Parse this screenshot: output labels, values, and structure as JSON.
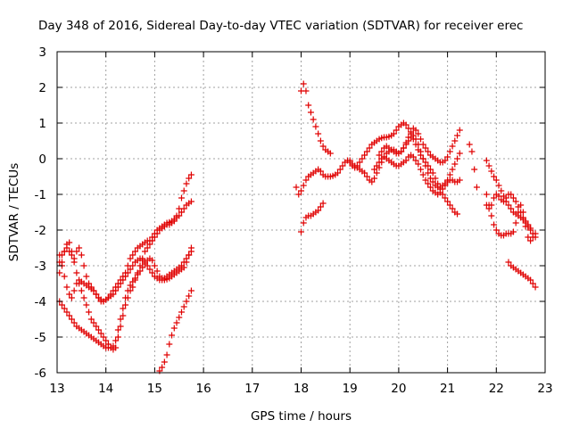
{
  "chart_data": {
    "type": "scatter",
    "title": "Day 348 of 2016, Sidereal Day-to-day VTEC variation (SDTVAR) for receiver erec",
    "xlabel": "GPS time / hours",
    "ylabel": "SDTVAR / TECUs",
    "xlim": [
      13,
      23
    ],
    "ylim": [
      -6,
      3
    ],
    "xticks": [
      "13",
      "14",
      "15",
      "16",
      "17",
      "18",
      "19",
      "20",
      "21",
      "22",
      "23"
    ],
    "yticks": [
      "3",
      "2",
      "1",
      "0",
      "-1",
      "-2",
      "-3",
      "-4",
      "-5",
      "-6"
    ],
    "marker": "+",
    "color": "#e00000",
    "series": [
      {
        "name": "s1",
        "x": [
          13.05,
          13.1,
          13.15,
          13.2,
          13.25,
          13.3,
          13.35,
          13.4,
          13.45,
          13.5,
          13.55,
          13.6,
          13.65,
          13.7,
          13.75,
          13.8,
          13.85,
          13.9,
          13.95,
          14.0,
          14.05,
          14.1,
          14.15,
          14.2,
          14.25,
          14.3,
          14.35,
          14.4,
          14.45,
          14.5,
          14.55,
          14.6,
          14.65,
          14.7,
          14.75,
          14.8,
          14.85,
          14.9,
          14.95,
          15.0,
          15.05,
          15.1,
          15.15,
          15.2,
          15.25,
          15.3,
          15.35,
          15.4,
          15.45,
          15.5,
          15.55,
          15.6,
          15.65,
          15.7,
          15.75
        ],
        "y": [
          -3.2,
          -2.9,
          -2.6,
          -2.4,
          -2.35,
          -2.6,
          -2.9,
          -3.2,
          -3.5,
          -3.7,
          -3.9,
          -4.1,
          -4.3,
          -4.5,
          -4.6,
          -4.7,
          -4.8,
          -4.9,
          -5.0,
          -5.1,
          -5.2,
          -5.3,
          -5.35,
          -5.3,
          -5.0,
          -4.7,
          -4.4,
          -4.1,
          -3.9,
          -3.7,
          -3.6,
          -3.4,
          -3.2,
          -3.0,
          -2.8,
          -2.6,
          -2.5,
          -2.4,
          -2.3,
          -2.2,
          -2.1,
          -2.0,
          -1.95,
          -1.9,
          -1.85,
          -1.85,
          -1.8,
          -1.75,
          -1.6,
          -1.4,
          -1.1,
          -0.9,
          -0.7,
          -0.55,
          -0.45
        ]
      },
      {
        "name": "s2",
        "x": [
          13.05,
          13.1,
          13.15,
          13.2,
          13.25,
          13.3,
          13.35,
          13.4,
          13.45,
          13.5,
          13.55,
          13.6,
          13.65,
          13.7,
          13.75,
          13.8,
          13.85,
          13.9,
          13.95,
          14.0,
          14.05,
          14.1,
          14.15,
          14.2,
          14.25,
          14.3,
          14.35,
          14.4,
          14.45,
          14.5,
          14.55,
          14.6,
          14.65,
          14.7,
          14.75,
          14.8,
          14.85,
          14.9,
          14.95,
          15.0,
          15.05,
          15.1,
          15.15,
          15.2,
          15.25,
          15.3,
          15.35,
          15.4,
          15.45,
          15.5,
          15.55,
          15.6,
          15.65,
          15.7,
          15.75
        ],
        "y": [
          -2.9,
          -2.7,
          -2.6,
          -2.5,
          -2.6,
          -2.7,
          -2.8,
          -2.6,
          -2.5,
          -2.7,
          -3.0,
          -3.3,
          -3.5,
          -3.6,
          -3.7,
          -3.8,
          -3.9,
          -3.95,
          -4.0,
          -3.95,
          -3.9,
          -3.8,
          -3.7,
          -3.6,
          -3.5,
          -3.4,
          -3.3,
          -3.2,
          -3.0,
          -2.8,
          -2.7,
          -2.6,
          -2.5,
          -2.45,
          -2.4,
          -2.35,
          -2.3,
          -2.3,
          -2.2,
          -2.1,
          -2.0,
          -1.95,
          -1.9,
          -1.85,
          -1.8,
          -1.78,
          -1.75,
          -1.7,
          -1.65,
          -1.6,
          -1.5,
          -1.4,
          -1.3,
          -1.25,
          -1.2
        ]
      },
      {
        "name": "s3",
        "x": [
          13.05,
          13.1,
          13.15,
          13.2,
          13.25,
          13.3,
          13.35,
          13.4,
          13.45,
          13.5,
          13.55,
          13.6,
          13.65,
          13.7,
          13.75,
          13.8,
          13.85,
          13.9,
          13.95,
          14.0,
          14.05,
          14.1,
          14.15,
          14.2,
          14.25,
          14.3,
          14.35,
          14.4,
          14.45,
          14.5,
          14.55,
          14.6,
          14.65,
          14.7,
          14.75,
          14.8,
          14.85,
          14.9,
          14.95,
          15.0,
          15.05,
          15.1,
          15.15,
          15.2,
          15.25,
          15.3,
          15.35,
          15.4,
          15.45,
          15.5,
          15.55,
          15.6,
          15.65,
          15.7,
          15.75
        ],
        "y": [
          -4.0,
          -4.1,
          -4.2,
          -4.3,
          -4.4,
          -4.5,
          -4.6,
          -4.7,
          -4.75,
          -4.8,
          -4.85,
          -4.9,
          -4.95,
          -5.0,
          -5.05,
          -5.1,
          -5.15,
          -5.2,
          -5.25,
          -5.3,
          -5.3,
          -5.3,
          -5.25,
          -5.1,
          -4.8,
          -4.5,
          -4.2,
          -3.9,
          -3.7,
          -3.55,
          -3.45,
          -3.35,
          -3.25,
          -3.15,
          -3.05,
          -2.95,
          -2.85,
          -2.8,
          -2.85,
          -3.0,
          -3.15,
          -3.3,
          -3.35,
          -3.4,
          -3.38,
          -3.35,
          -3.3,
          -3.25,
          -3.2,
          -3.15,
          -3.1,
          -3.05,
          -2.9,
          -2.7,
          -2.5
        ]
      },
      {
        "name": "s4",
        "x": [
          13.05,
          13.1,
          13.15,
          13.2,
          13.25,
          13.3,
          13.35,
          13.4,
          13.45,
          13.5,
          13.55,
          13.6,
          13.65,
          13.7,
          13.75,
          13.8,
          13.85,
          13.9,
          13.95,
          14.0,
          14.05,
          14.1,
          14.15,
          14.2,
          14.25,
          14.3,
          14.35,
          14.4,
          14.45,
          14.5,
          14.55,
          14.6,
          14.65,
          14.7,
          14.75,
          14.8,
          14.85,
          14.9,
          14.95,
          15.0,
          15.05,
          15.1,
          15.15,
          15.2,
          15.25,
          15.3,
          15.35,
          15.4,
          15.45,
          15.5,
          15.55,
          15.6,
          15.65,
          15.7,
          15.75
        ],
        "y": [
          -2.7,
          -3.0,
          -3.3,
          -3.6,
          -3.8,
          -3.9,
          -3.7,
          -3.5,
          -3.4,
          -3.45,
          -3.5,
          -3.55,
          -3.6,
          -3.65,
          -3.7,
          -3.8,
          -3.9,
          -4.0,
          -4.0,
          -3.95,
          -3.9,
          -3.85,
          -3.8,
          -3.7,
          -3.6,
          -3.5,
          -3.4,
          -3.3,
          -3.2,
          -3.1,
          -3.0,
          -2.9,
          -2.85,
          -2.8,
          -2.85,
          -2.9,
          -3.0,
          -3.1,
          -3.2,
          -3.3,
          -3.35,
          -3.4,
          -3.4,
          -3.35,
          -3.3,
          -3.25,
          -3.2,
          -3.15,
          -3.1,
          -3.05,
          -3.0,
          -2.9,
          -2.8,
          -2.7,
          -2.6
        ]
      },
      {
        "name": "s5",
        "x": [
          15.1,
          15.15,
          15.2,
          15.25,
          15.3,
          15.35,
          15.4,
          15.45,
          15.5,
          15.55,
          15.6,
          15.65,
          15.7,
          15.75
        ],
        "y": [
          -5.95,
          -5.85,
          -5.7,
          -5.5,
          -5.2,
          -4.95,
          -4.75,
          -4.6,
          -4.45,
          -4.3,
          -4.15,
          -4.0,
          -3.85,
          -3.7
        ]
      },
      {
        "name": "s6",
        "x": [
          18.0,
          18.05,
          18.1,
          18.15,
          18.2,
          18.25,
          18.3,
          18.35,
          18.4,
          18.45,
          18.5,
          18.55,
          18.6
        ],
        "y": [
          1.9,
          2.1,
          1.9,
          1.5,
          1.3,
          1.1,
          0.9,
          0.7,
          0.5,
          0.35,
          0.25,
          0.2,
          0.15
        ]
      },
      {
        "name": "s7",
        "x": [
          18.0,
          18.05,
          18.1,
          18.15,
          18.2,
          18.25,
          18.3,
          18.35,
          18.4,
          18.45
        ],
        "y": [
          -2.05,
          -1.8,
          -1.65,
          -1.6,
          -1.6,
          -1.55,
          -1.5,
          -1.45,
          -1.35,
          -1.25
        ]
      },
      {
        "name": "s8",
        "x": [
          17.9,
          17.95,
          18.0,
          18.05,
          18.1,
          18.15,
          18.2,
          18.25,
          18.3,
          18.35,
          18.4,
          18.45,
          18.5,
          18.55,
          18.6,
          18.65,
          18.7,
          18.75,
          18.8,
          18.85,
          18.9,
          18.95,
          19.0,
          19.05,
          19.1,
          19.15,
          19.2,
          19.25,
          19.3,
          19.35,
          19.4,
          19.45,
          19.5,
          19.55,
          19.6,
          19.65,
          19.7,
          19.75,
          19.8,
          19.85,
          19.9,
          19.95,
          20.0,
          20.05,
          20.1,
          20.15,
          20.2,
          20.25,
          20.3,
          20.35,
          20.4,
          20.45,
          20.5,
          20.55,
          20.6,
          20.65,
          20.7,
          20.75,
          20.8,
          20.85,
          20.9,
          20.95,
          21.0,
          21.05,
          21.1,
          21.15,
          21.2
        ],
        "y": [
          -0.8,
          -1.0,
          -0.9,
          -0.75,
          -0.6,
          -0.5,
          -0.45,
          -0.4,
          -0.35,
          -0.3,
          -0.35,
          -0.45,
          -0.5,
          -0.5,
          -0.5,
          -0.48,
          -0.45,
          -0.4,
          -0.3,
          -0.2,
          -0.1,
          -0.05,
          -0.1,
          -0.2,
          -0.25,
          -0.2,
          -0.1,
          0.0,
          0.1,
          0.2,
          0.3,
          0.4,
          0.45,
          0.5,
          0.55,
          0.58,
          0.6,
          0.6,
          0.62,
          0.65,
          0.7,
          0.8,
          0.9,
          0.95,
          1.0,
          0.95,
          0.85,
          0.7,
          0.55,
          0.4,
          0.25,
          0.1,
          0.0,
          -0.1,
          -0.2,
          -0.3,
          -0.4,
          -0.55,
          -0.7,
          -0.85,
          -1.0,
          -1.1,
          -1.2,
          -1.3,
          -1.4,
          -1.5,
          -1.55
        ]
      },
      {
        "name": "s9",
        "x": [
          19.0,
          19.05,
          19.1,
          19.15,
          19.2,
          19.25,
          19.3,
          19.35,
          19.4,
          19.45,
          19.5,
          19.55,
          19.6,
          19.65,
          19.7,
          19.75,
          19.8,
          19.85,
          19.9,
          19.95,
          20.0,
          20.05,
          20.1,
          20.15,
          20.2,
          20.25,
          20.3,
          20.35,
          20.4,
          20.45,
          20.5,
          20.55,
          20.6,
          20.65,
          20.7,
          20.75,
          20.8,
          20.85,
          20.9,
          20.95,
          21.0,
          21.05,
          21.1,
          21.15,
          21.2,
          21.25
        ],
        "y": [
          -0.05,
          -0.15,
          -0.2,
          -0.25,
          -0.3,
          -0.35,
          -0.4,
          -0.5,
          -0.6,
          -0.65,
          -0.55,
          -0.4,
          -0.25,
          -0.1,
          0.05,
          0.15,
          0.2,
          0.25,
          0.25,
          0.2,
          0.15,
          0.2,
          0.3,
          0.45,
          0.6,
          0.75,
          0.85,
          0.8,
          0.7,
          0.55,
          0.4,
          0.3,
          0.2,
          0.1,
          0.05,
          0.0,
          -0.05,
          -0.1,
          -0.1,
          -0.05,
          0.05,
          0.2,
          0.35,
          0.5,
          0.65,
          0.8
        ]
      },
      {
        "name": "s10",
        "x": [
          19.5,
          19.55,
          19.6,
          19.65,
          19.7,
          19.75,
          19.8,
          19.85,
          19.9,
          19.95,
          20.0,
          20.05,
          20.1,
          20.15,
          20.2,
          20.25,
          20.3,
          20.35,
          20.4,
          20.45,
          20.5,
          20.55,
          20.6,
          20.65,
          20.7,
          20.75,
          20.8,
          20.85,
          20.9,
          20.95,
          21.0,
          21.05,
          21.1,
          21.15,
          21.2,
          21.25
        ],
        "y": [
          -0.3,
          -0.2,
          -0.1,
          0.0,
          0.05,
          0.0,
          -0.05,
          -0.1,
          -0.15,
          -0.2,
          -0.2,
          -0.15,
          -0.1,
          -0.05,
          0.05,
          0.1,
          0.05,
          -0.05,
          -0.15,
          -0.3,
          -0.45,
          -0.6,
          -0.7,
          -0.8,
          -0.9,
          -0.95,
          -1.0,
          -0.95,
          -0.85,
          -0.75,
          -0.6,
          -0.45,
          -0.3,
          -0.15,
          0.0,
          0.15
        ]
      },
      {
        "name": "s11",
        "x": [
          19.6,
          19.65,
          19.7,
          19.75,
          19.8,
          19.85,
          19.9,
          19.95,
          20.0,
          20.05,
          20.1,
          20.15,
          20.2,
          20.25,
          20.3,
          20.35,
          20.4,
          20.45,
          20.5,
          20.55,
          20.6,
          20.65,
          20.7,
          20.75,
          20.8,
          20.85,
          20.9,
          20.95,
          21.0,
          21.05,
          21.1,
          21.15,
          21.2,
          21.25
        ],
        "y": [
          0.1,
          0.2,
          0.3,
          0.35,
          0.3,
          0.25,
          0.2,
          0.15,
          0.15,
          0.2,
          0.3,
          0.4,
          0.5,
          0.6,
          0.65,
          0.55,
          0.4,
          0.2,
          0.0,
          -0.2,
          -0.4,
          -0.55,
          -0.65,
          -0.75,
          -0.8,
          -0.8,
          -0.75,
          -0.7,
          -0.65,
          -0.6,
          -0.6,
          -0.65,
          -0.65,
          -0.6
        ]
      },
      {
        "name": "s12",
        "x": [
          21.45,
          21.5,
          21.55,
          21.6
        ],
        "y": [
          0.4,
          0.2,
          -0.3,
          -0.8
        ]
      },
      {
        "name": "s13",
        "x": [
          21.8,
          21.85,
          21.9,
          21.95,
          22.0,
          22.05,
          22.1,
          22.15,
          22.2,
          22.25,
          22.3,
          22.35,
          22.4,
          22.45,
          22.5,
          22.55,
          22.6,
          22.65,
          22.7,
          22.75,
          22.8
        ],
        "y": [
          -0.05,
          -0.2,
          -0.35,
          -0.5,
          -0.6,
          -0.75,
          -0.9,
          -1.05,
          -1.2,
          -1.3,
          -1.4,
          -1.5,
          -1.55,
          -1.6,
          -1.65,
          -1.7,
          -1.8,
          -1.9,
          -2.0,
          -2.1,
          -2.2
        ]
      },
      {
        "name": "s14",
        "x": [
          21.8,
          21.85,
          21.9,
          21.95,
          22.0,
          22.05,
          22.1,
          22.15,
          22.2,
          22.25,
          22.3,
          22.35,
          22.4,
          22.45,
          22.5,
          22.55,
          22.6,
          22.65,
          22.7,
          22.75,
          22.8
        ],
        "y": [
          -1.0,
          -1.3,
          -1.6,
          -1.85,
          -2.0,
          -2.1,
          -2.15,
          -2.15,
          -2.1,
          -2.1,
          -2.1,
          -2.05,
          -1.8,
          -1.5,
          -1.3,
          -1.5,
          -1.9,
          -2.2,
          -2.3,
          -2.2,
          -2.1
        ]
      },
      {
        "name": "s15",
        "x": [
          21.8,
          21.85,
          21.9,
          21.95,
          22.0,
          22.05,
          22.1,
          22.15,
          22.2,
          22.25,
          22.3,
          22.35,
          22.4,
          22.45,
          22.5,
          22.55,
          22.6,
          22.65,
          22.7
        ],
        "y": [
          -1.3,
          -1.4,
          -1.3,
          -1.1,
          -1.0,
          -1.05,
          -1.15,
          -1.2,
          -1.1,
          -1.0,
          -1.0,
          -1.1,
          -1.2,
          -1.35,
          -1.5,
          -1.65,
          -1.75,
          -1.85,
          -1.95
        ]
      },
      {
        "name": "s16",
        "x": [
          22.25,
          22.3,
          22.35,
          22.4,
          22.45,
          22.5,
          22.55,
          22.6,
          22.65,
          22.7,
          22.75,
          22.8
        ],
        "y": [
          -2.9,
          -3.0,
          -3.05,
          -3.1,
          -3.15,
          -3.2,
          -3.25,
          -3.3,
          -3.35,
          -3.4,
          -3.5,
          -3.6
        ]
      }
    ]
  }
}
